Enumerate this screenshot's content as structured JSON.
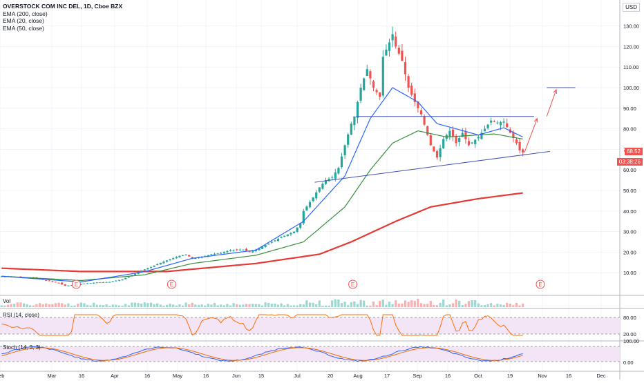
{
  "header": {
    "title": "OVERSTOCK COM INC DEL, 1D, Cboe BZX",
    "indicators": [
      "EMA (200, close)",
      "EMA (20, close)",
      "EMA (50, close)"
    ],
    "currency": "USD"
  },
  "price_tags": {
    "last": "68.52",
    "countdown": "03:38:26"
  },
  "panes": {
    "volume": "Vol",
    "rsi": "RSI (14, close)",
    "stoch": "Stoch (14, 3, 3)"
  },
  "colors": {
    "up": "#26a69a",
    "down": "#ef5350",
    "ema20": "#2962ff",
    "ema50": "#388e3c",
    "ema200": "#e53935",
    "trendline": "#3f51b5",
    "arrow": "#ef5350",
    "rsi": "#ff6d00",
    "stoch_k": "#2962ff",
    "stoch_d": "#ef6c00"
  },
  "chart_data": {
    "type": "candlestick",
    "title": "OVERSTOCK COM INC DEL, 1D, Cboe BZX",
    "x_tick_labels": [
      "Feb",
      "Mar",
      "16",
      "Apr",
      "16",
      "May",
      "16",
      "Jun",
      "15",
      "Jul",
      "20",
      "Aug",
      "17",
      "Sep",
      "16",
      "Oct",
      "19",
      "Nov",
      "16",
      "Dec"
    ],
    "y_tick_labels": [
      "10.00",
      "20.00",
      "30.00",
      "40.00",
      "50.00",
      "60.00",
      "70.00",
      "80.00",
      "90.00",
      "100.00",
      "110.00",
      "120.00",
      "130.00"
    ],
    "ylim": [
      0,
      140
    ],
    "close_anchors": [
      [
        0,
        8.2
      ],
      [
        5,
        8.0
      ],
      [
        10,
        7.6
      ],
      [
        14,
        6.2
      ],
      [
        18,
        5.0
      ],
      [
        20,
        3.6
      ],
      [
        22,
        4.0
      ],
      [
        25,
        4.5
      ],
      [
        30,
        5.3
      ],
      [
        34,
        5.5
      ],
      [
        38,
        6.8
      ],
      [
        42,
        9.5
      ],
      [
        44,
        11.0
      ],
      [
        47,
        12.8
      ],
      [
        49,
        14.2
      ],
      [
        52,
        16.0
      ],
      [
        56,
        18.2
      ],
      [
        58,
        18.8
      ],
      [
        60,
        17.0
      ],
      [
        63,
        17.6
      ],
      [
        66,
        19.0
      ],
      [
        69,
        19.6
      ],
      [
        72,
        21.0
      ],
      [
        76,
        21.3
      ],
      [
        78,
        20.0
      ],
      [
        81,
        21.9
      ],
      [
        84,
        24.2
      ],
      [
        88,
        27.3
      ],
      [
        92,
        30.0
      ],
      [
        94,
        34.0
      ],
      [
        95,
        40.0
      ],
      [
        98,
        46.6
      ],
      [
        100,
        51.5
      ],
      [
        102,
        55.0
      ],
      [
        104,
        56.5
      ],
      [
        106,
        61.0
      ],
      [
        108,
        72.0
      ],
      [
        110,
        82.5
      ],
      [
        111,
        86.0
      ],
      [
        113,
        100.0
      ],
      [
        115,
        109.0
      ],
      [
        117,
        100.0
      ],
      [
        119,
        95.5
      ],
      [
        120,
        115.0
      ],
      [
        122,
        122.0
      ],
      [
        123,
        126.0
      ],
      [
        124,
        120.0
      ],
      [
        126,
        113.0
      ],
      [
        128,
        100.0
      ],
      [
        130,
        93.0
      ],
      [
        132,
        87.0
      ],
      [
        135,
        72.0
      ],
      [
        137,
        66.0
      ],
      [
        139,
        75.0
      ],
      [
        141,
        79.0
      ],
      [
        143,
        73.0
      ],
      [
        145,
        78.0
      ],
      [
        147,
        72.0
      ],
      [
        150,
        76.0
      ],
      [
        152,
        80.0
      ],
      [
        154,
        84.0
      ],
      [
        156,
        83.0
      ],
      [
        158,
        83.5
      ],
      [
        160,
        78.0
      ],
      [
        162,
        73.0
      ],
      [
        163,
        69.5
      ],
      [
        164,
        68.5
      ]
    ],
    "series": [
      {
        "name": "EMA (200, close)",
        "type": "line",
        "anchors": [
          [
            0,
            12.2
          ],
          [
            25,
            10.6
          ],
          [
            52,
            10.6
          ],
          [
            80,
            14.5
          ],
          [
            100,
            19.0
          ],
          [
            110,
            25.0
          ],
          [
            124,
            35.0
          ],
          [
            135,
            42.0
          ],
          [
            150,
            46.0
          ],
          [
            164,
            48.8
          ]
        ]
      },
      {
        "name": "EMA (20, close)",
        "type": "line",
        "anchors": [
          [
            0,
            8.3
          ],
          [
            25,
            5.5
          ],
          [
            45,
            10.5
          ],
          [
            60,
            17.0
          ],
          [
            80,
            21.0
          ],
          [
            95,
            35.0
          ],
          [
            108,
            57.0
          ],
          [
            116,
            85.0
          ],
          [
            123,
            100.0
          ],
          [
            131,
            93.0
          ],
          [
            137,
            82.5
          ],
          [
            150,
            77.0
          ],
          [
            158,
            80.5
          ],
          [
            164,
            76.0
          ]
        ]
      },
      {
        "name": "EMA (50, close)",
        "type": "line",
        "anchors": [
          [
            0,
            8.3
          ],
          [
            25,
            6.2
          ],
          [
            45,
            9.0
          ],
          [
            60,
            14.5
          ],
          [
            80,
            18.5
          ],
          [
            95,
            25.0
          ],
          [
            108,
            42.0
          ],
          [
            116,
            60.0
          ],
          [
            123,
            73.0
          ],
          [
            131,
            79.0
          ],
          [
            140,
            76.0
          ],
          [
            155,
            77.5
          ],
          [
            164,
            75.0
          ]
        ]
      }
    ],
    "drawings": {
      "support_trendline": [
        [
          99,
          54.0
        ],
        [
          173,
          69.0
        ]
      ],
      "resistance_line": [
        [
          112,
          86.0
        ],
        [
          168,
          86.0
        ]
      ],
      "target_line": [
        [
          172,
          100.0
        ],
        [
          181,
          100.0
        ]
      ],
      "arrow_up_1": [
        [
          165,
          68.5
        ],
        [
          169,
          85.0
        ]
      ],
      "arrow_up_2": [
        [
          172,
          86.0
        ],
        [
          175,
          99.0
        ]
      ]
    },
    "earnings_markers": [
      24,
      54,
      111,
      170
    ],
    "volume": {
      "label": "Vol"
    },
    "rsi": {
      "label": "RSI (14, close)",
      "levels": [
        "80.00",
        "20.00"
      ]
    },
    "stoch": {
      "label": "Stoch (14, 3, 3)",
      "levels": [
        "100.00",
        "0.00"
      ]
    }
  }
}
